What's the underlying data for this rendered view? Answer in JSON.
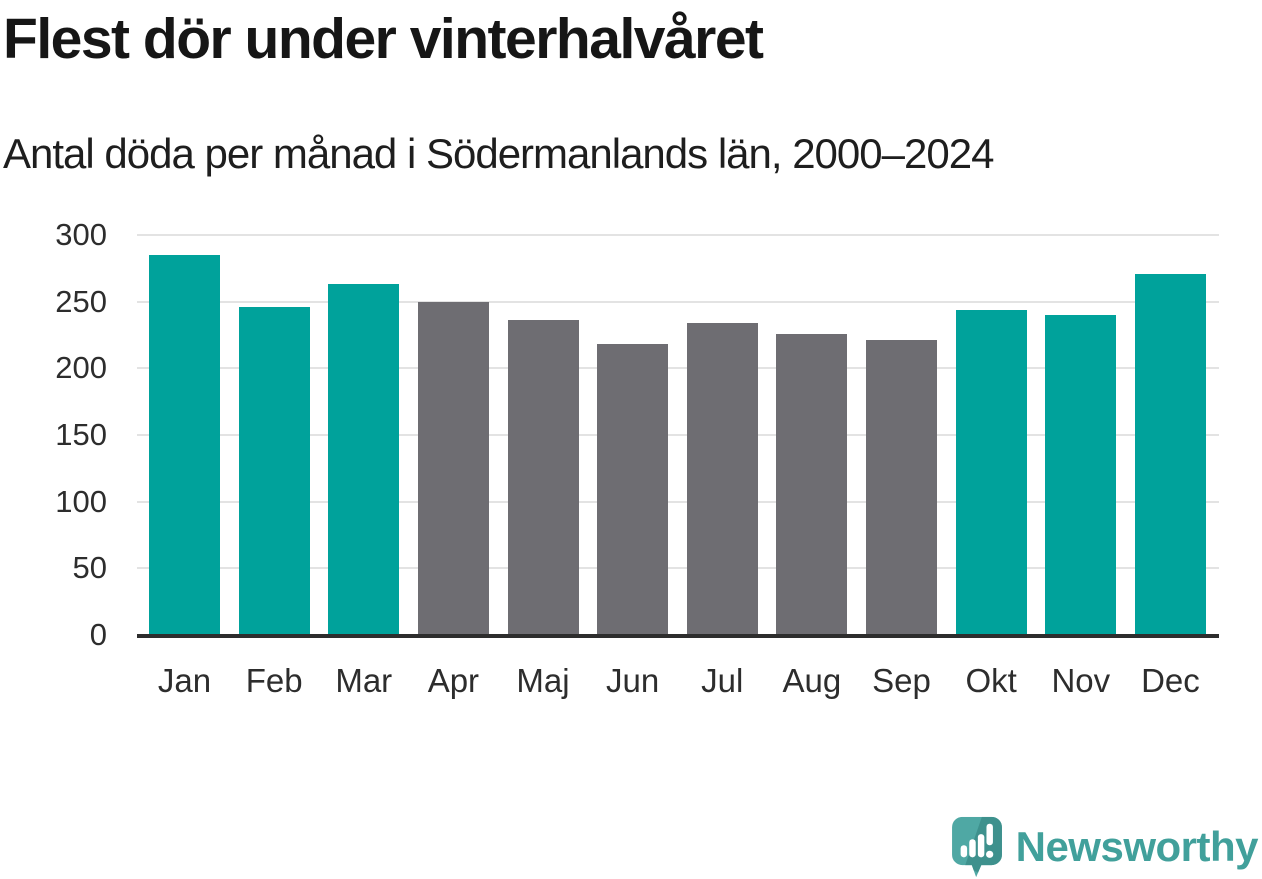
{
  "header": {
    "title": "Flest dör under vinterhalvåret",
    "subtitle": "Antal döda per månad i Södermanlands län, 2000–2024"
  },
  "chart_data": {
    "type": "bar",
    "title": "Flest dör under vinterhalvåret",
    "subtitle": "Antal döda per månad i Södermanlands län, 2000–2024",
    "categories": [
      "Jan",
      "Feb",
      "Mar",
      "Apr",
      "Maj",
      "Jun",
      "Jul",
      "Aug",
      "Sep",
      "Okt",
      "Nov",
      "Dec"
    ],
    "values": [
      285,
      246,
      263,
      250,
      236,
      218,
      234,
      226,
      221,
      244,
      240,
      271
    ],
    "color_keys": [
      "winter",
      "winter",
      "winter",
      "summer",
      "summer",
      "summer",
      "summer",
      "summer",
      "summer",
      "winter",
      "winter",
      "winter"
    ],
    "palette": {
      "winter": "#00a29b",
      "summer": "#6e6d72"
    },
    "xlabel": "",
    "ylabel": "",
    "yticks": [
      0,
      50,
      100,
      150,
      200,
      250,
      300
    ],
    "ylim": [
      0,
      300
    ],
    "grid": "horizontal",
    "grid_color": "#e3e3e3",
    "axis_color": "#2d2d2d",
    "tick_text_color": "#2d2d2d",
    "legend": "none"
  },
  "footer": {
    "brand": "Newsworthy",
    "wordmark_color": "#41a09b",
    "icon_color": "#4fa8a4",
    "icon_shade_color": "#3e918d",
    "icon_glyph_color": "#ffffff"
  }
}
